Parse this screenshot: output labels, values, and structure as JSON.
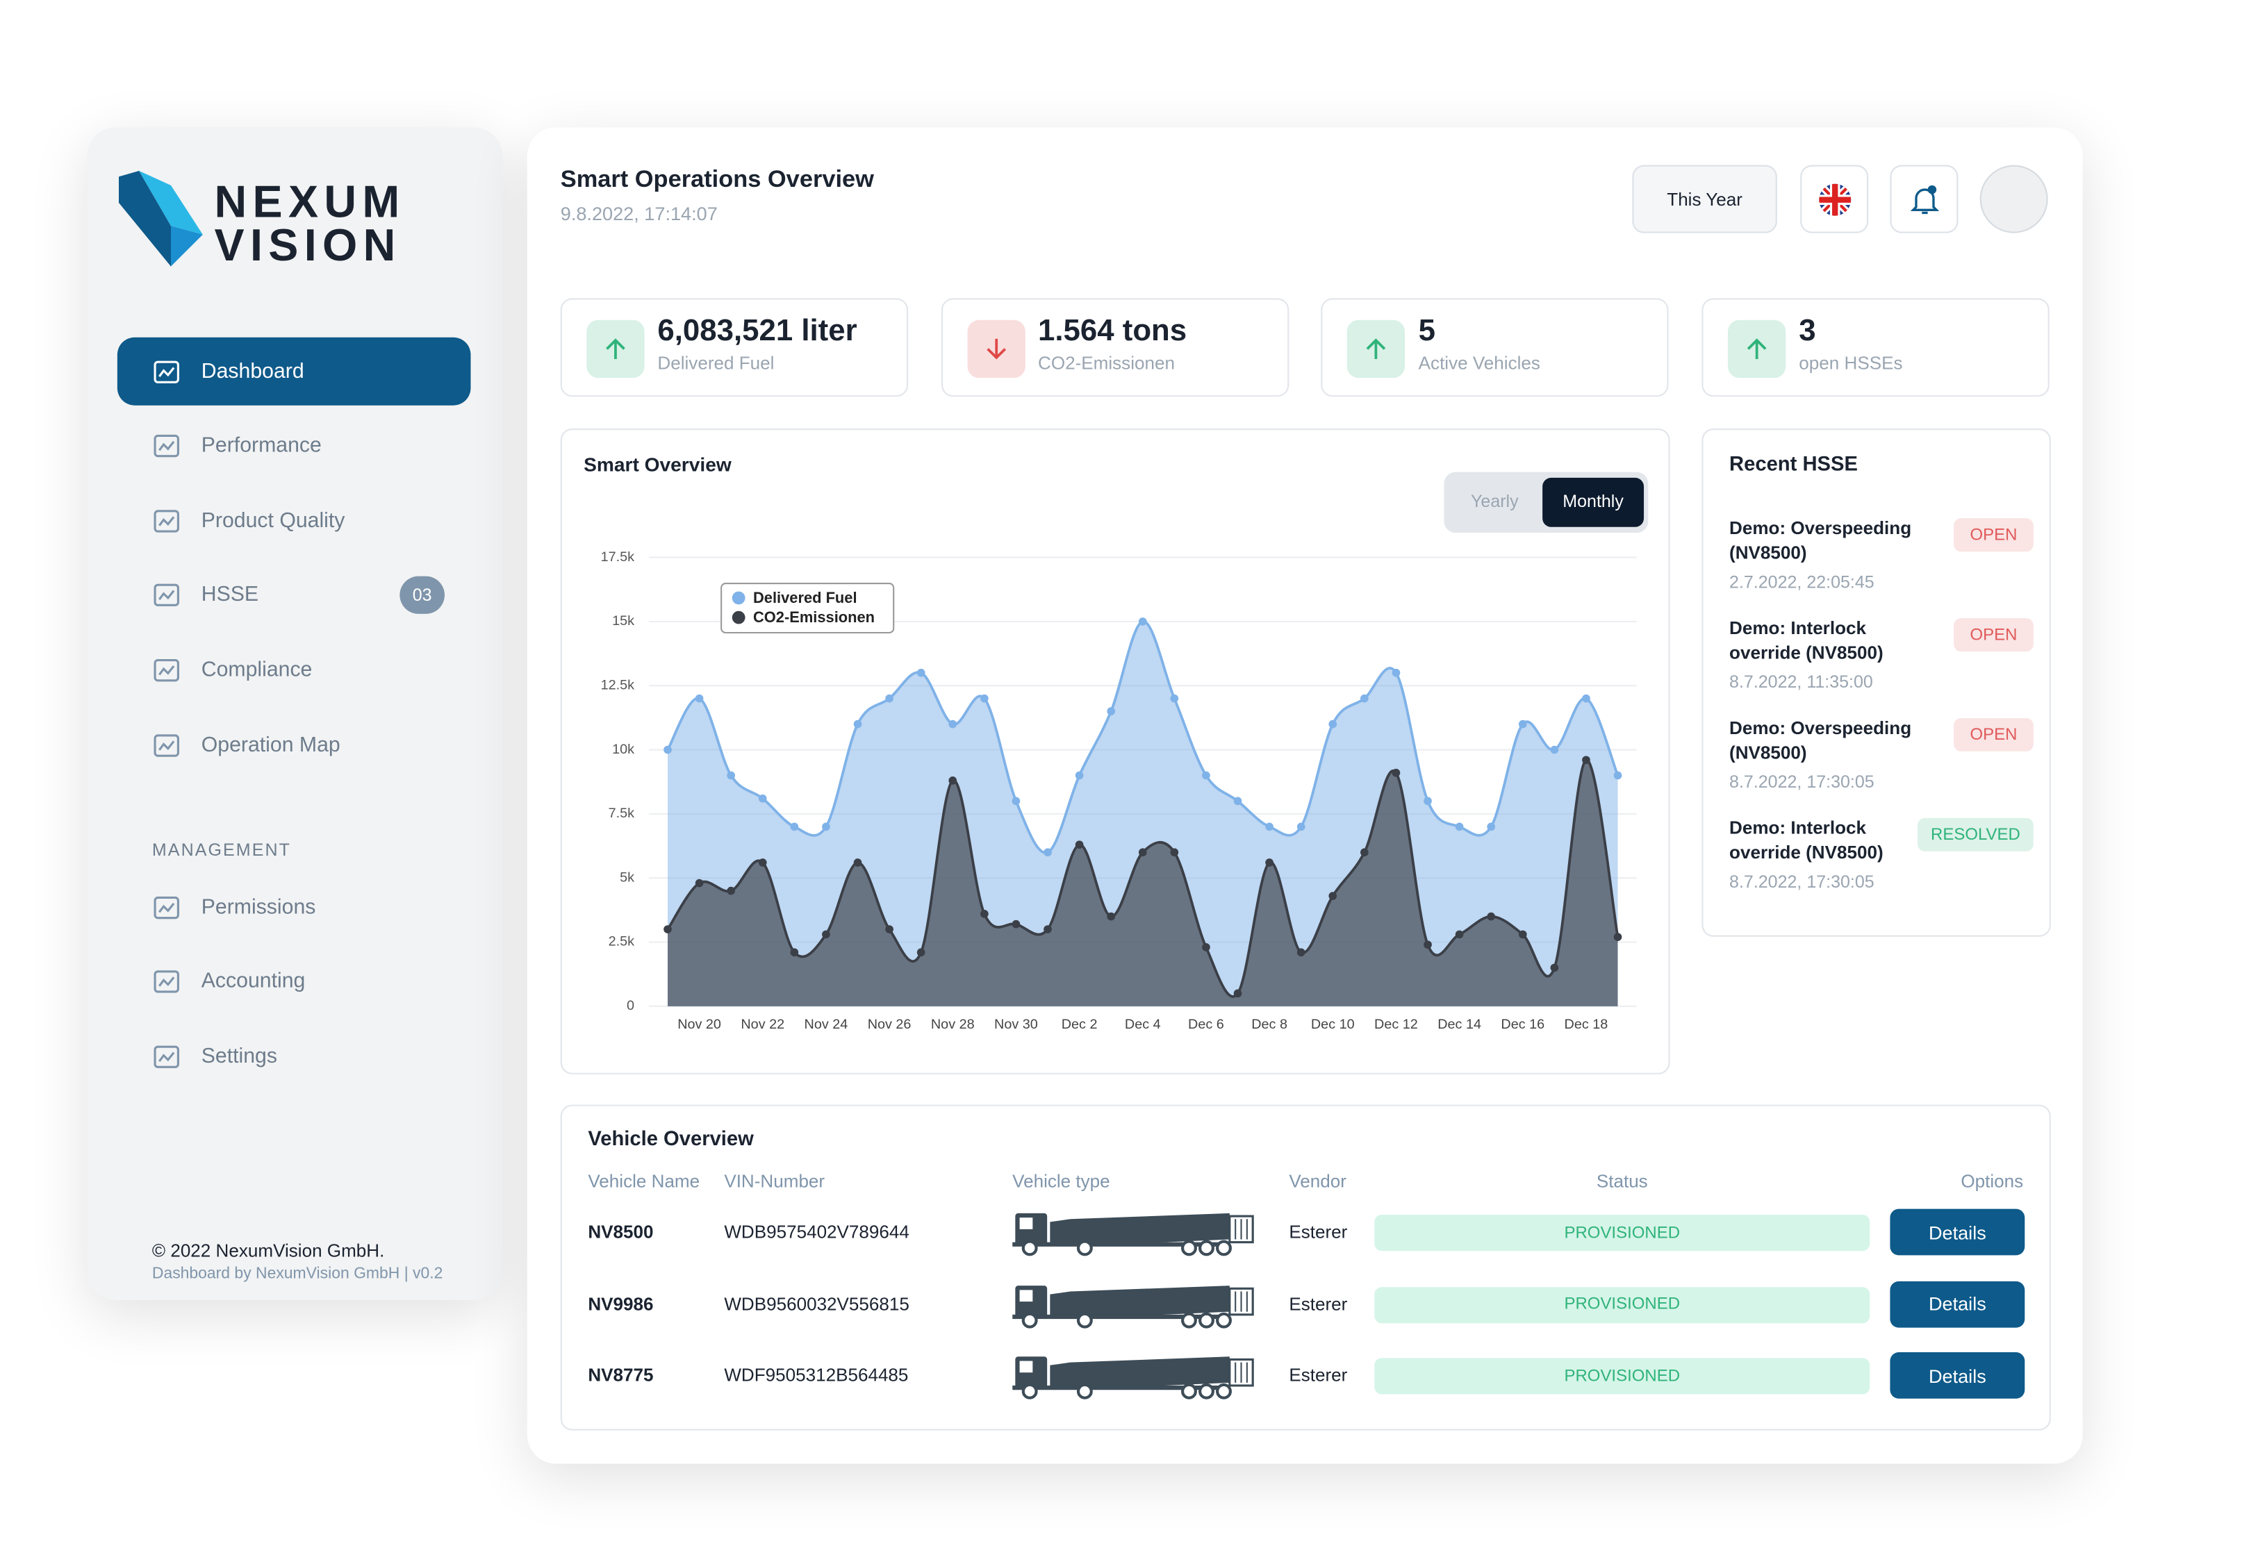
{
  "sidebar": {
    "brand": [
      "NEXUM",
      "VISION"
    ],
    "nav": [
      {
        "label": "Dashboard",
        "active": true
      },
      {
        "label": "Performance"
      },
      {
        "label": "Product Quality"
      },
      {
        "label": "HSSE",
        "badge": "03"
      },
      {
        "label": "Compliance"
      },
      {
        "label": "Operation Map"
      }
    ],
    "section": "MANAGEMENT",
    "management": [
      "Permissions",
      "Accounting",
      "Settings"
    ],
    "footer": {
      "copyright": "© 2022 NexumVision GmbH.",
      "credit": "Dashboard by NexumVision GmbH | v0.2"
    }
  },
  "header": {
    "title": "Smart Operations Overview",
    "timestamp": "9.8.2022, 17:14:07",
    "period": "This Year"
  },
  "kpis": [
    {
      "value": "6,083,521 liter",
      "label": "Delivered Fuel",
      "trend": "up",
      "color": "#2fb37a"
    },
    {
      "value": "1.564 tons",
      "label": "CO2-Emissionen",
      "trend": "down",
      "color": "#e04848"
    },
    {
      "value": "5",
      "label": "Active Vehicles",
      "trend": "up",
      "color": "#2fb37a"
    },
    {
      "value": "3",
      "label": "open HSSEs",
      "trend": "up",
      "color": "#2fb37a"
    }
  ],
  "chart_data": {
    "type": "area",
    "title": "Smart Overview",
    "toggle": [
      "Yearly",
      "Monthly"
    ],
    "active_toggle": 1,
    "categories": [
      null,
      "Nov 20",
      null,
      "Nov 22",
      null,
      "Nov 24",
      null,
      "Nov 26",
      null,
      "Nov 28",
      null,
      "Nov 30",
      null,
      "Dec 2",
      null,
      "Dec 4",
      null,
      "Dec 6",
      null,
      "Dec 8",
      null,
      "Dec 10",
      null,
      "Dec 12",
      null,
      "Dec 14",
      null,
      "Dec 16",
      null,
      "Dec 18",
      null
    ],
    "series": [
      {
        "name": "Delivered Fuel",
        "color": "#7fb2e8",
        "values": [
          10000,
          12000,
          9000,
          8100,
          7000,
          7000,
          11000,
          12000,
          13000,
          11000,
          12000,
          8000,
          6000,
          9000,
          11500,
          15000,
          12000,
          9000,
          8000,
          7000,
          7000,
          11000,
          12000,
          13000,
          8000,
          7000,
          7000,
          11000,
          10000,
          12000,
          9000
        ]
      },
      {
        "name": "CO2-Emissionen",
        "color": "#3b3f47",
        "values": [
          3000,
          4800,
          4500,
          5600,
          2100,
          2800,
          5600,
          3000,
          2100,
          8800,
          3600,
          3200,
          3000,
          6300,
          3500,
          6000,
          6000,
          2300,
          500,
          5600,
          2100,
          4300,
          6000,
          9100,
          2400,
          2800,
          3500,
          2800,
          1500,
          9600,
          2700
        ]
      }
    ],
    "ylim": [
      0,
      17500
    ],
    "yticks": [
      0,
      {
        "value": 2500,
        "label": "2.5k"
      },
      {
        "value": 5000,
        "label": "5k"
      },
      {
        "value": 7500,
        "label": "7.5k"
      },
      {
        "value": 10000,
        "label": "10k"
      },
      {
        "value": 12500,
        "label": "12.5k"
      },
      {
        "value": 15000,
        "label": "15k"
      },
      {
        "value": 17500,
        "label": "17.5k"
      }
    ],
    "grid": true,
    "legend": "top-left"
  },
  "hsse": {
    "title": "Recent HSSE",
    "items": [
      {
        "title": "Demo: Overspeeding (NV8500)",
        "time": "2.7.2022, 22:05:45",
        "status": "OPEN",
        "color": "#e05a5a"
      },
      {
        "title": "Demo: Interlock override (NV8500)",
        "time": "8.7.2022, 11:35:00",
        "status": "OPEN",
        "color": "#e05a5a"
      },
      {
        "title": "Demo: Overspeeding (NV8500)",
        "time": "8.7.2022, 17:30:05",
        "status": "OPEN",
        "color": "#e05a5a"
      },
      {
        "title": "Demo: Interlock override (NV8500)",
        "time": "8.7.2022, 17:30:05",
        "status": "RESOLVED",
        "color": "#2fb37a"
      }
    ]
  },
  "vehicles": {
    "title": "Vehicle Overview",
    "columns": [
      "Vehicle Name",
      "VIN-Number",
      "Vehicle type",
      "Vendor",
      "Status",
      "Options"
    ],
    "rows": [
      {
        "name": "NV8500",
        "vin": "WDB9575402V789644",
        "vendor": "Esterer",
        "status": "PROVISIONED",
        "action": "Details"
      },
      {
        "name": "NV9986",
        "vin": "WDB9560032V556815",
        "vendor": "Esterer",
        "status": "PROVISIONED",
        "action": "Details"
      },
      {
        "name": "NV8775",
        "vin": "WDF9505312B564485",
        "vendor": "Esterer",
        "status": "PROVISIONED",
        "action": "Details"
      }
    ]
  }
}
